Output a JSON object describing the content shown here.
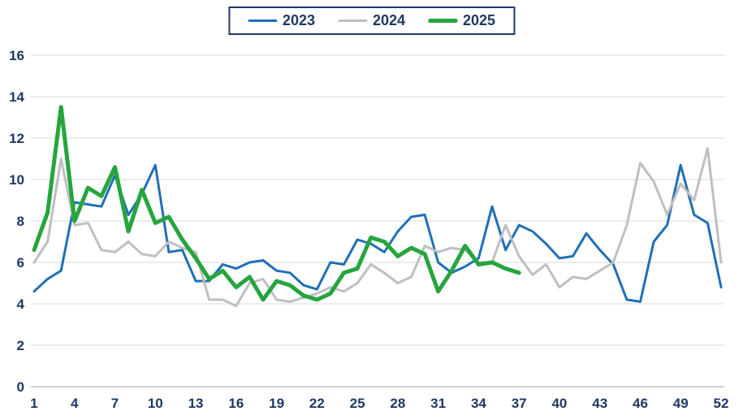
{
  "chart_data": {
    "type": "line",
    "title": "",
    "xlabel": "",
    "ylabel": "",
    "xlim": [
      1,
      52
    ],
    "ylim": [
      0,
      16
    ],
    "x_ticks": [
      1,
      4,
      7,
      10,
      13,
      16,
      19,
      22,
      25,
      28,
      31,
      34,
      37,
      40,
      43,
      46,
      49,
      52
    ],
    "y_ticks": [
      0,
      2,
      4,
      6,
      8,
      10,
      12,
      14,
      16
    ],
    "grid": true,
    "legend_position": "top-center",
    "colors": {
      "axis_text": "#1F3864",
      "grid": "#D9D9D9",
      "axis_line": "#A6A6A6",
      "legend_border": "#1F3864"
    },
    "series": [
      {
        "name": "2023",
        "color": "#1F6FB8",
        "width": 3,
        "values": [
          4.6,
          5.2,
          5.6,
          8.9,
          8.8,
          8.7,
          10.2,
          8.3,
          9.3,
          10.7,
          6.5,
          6.6,
          5.1,
          5.1,
          5.9,
          5.7,
          6.0,
          6.1,
          5.6,
          5.5,
          4.9,
          4.7,
          6.0,
          5.9,
          7.1,
          6.9,
          6.5,
          7.5,
          8.2,
          8.3,
          6.0,
          5.5,
          5.8,
          6.2,
          8.7,
          6.6,
          7.8,
          7.5,
          6.9,
          6.2,
          6.3,
          7.4,
          6.6,
          5.9,
          4.2,
          4.1,
          7.0,
          7.8,
          10.7,
          8.3,
          7.9,
          4.8
        ]
      },
      {
        "name": "2024",
        "color": "#BFBFBF",
        "width": 3,
        "values": [
          6.0,
          7.0,
          11.0,
          7.8,
          7.9,
          6.6,
          6.5,
          7.0,
          6.4,
          6.3,
          7.0,
          6.7,
          6.5,
          4.2,
          4.2,
          3.9,
          5.0,
          5.2,
          4.2,
          4.1,
          4.3,
          4.5,
          4.8,
          4.6,
          5.0,
          5.9,
          5.5,
          5.0,
          5.3,
          6.8,
          6.5,
          6.7,
          6.6,
          6.0,
          6.0,
          7.8,
          6.3,
          5.4,
          5.9,
          4.8,
          5.3,
          5.2,
          5.6,
          6.0,
          7.8,
          10.8,
          9.9,
          8.3,
          9.8,
          9.0,
          11.5,
          6.0
        ]
      },
      {
        "name": "2025",
        "color": "#25A53C",
        "width": 5,
        "values": [
          6.6,
          8.4,
          13.5,
          8.0,
          9.6,
          9.2,
          10.6,
          7.5,
          9.5,
          7.9,
          8.2,
          7.1,
          6.2,
          5.2,
          5.6,
          4.8,
          5.3,
          4.2,
          5.1,
          4.9,
          4.4,
          4.2,
          4.5,
          5.5,
          5.7,
          7.2,
          7.0,
          6.3,
          6.7,
          6.4,
          4.6,
          5.6,
          6.8,
          5.9,
          6.0,
          5.7,
          5.5,
          null,
          null,
          null,
          null,
          null,
          null,
          null,
          null,
          null,
          null,
          null,
          null,
          null,
          null,
          null
        ]
      }
    ]
  }
}
